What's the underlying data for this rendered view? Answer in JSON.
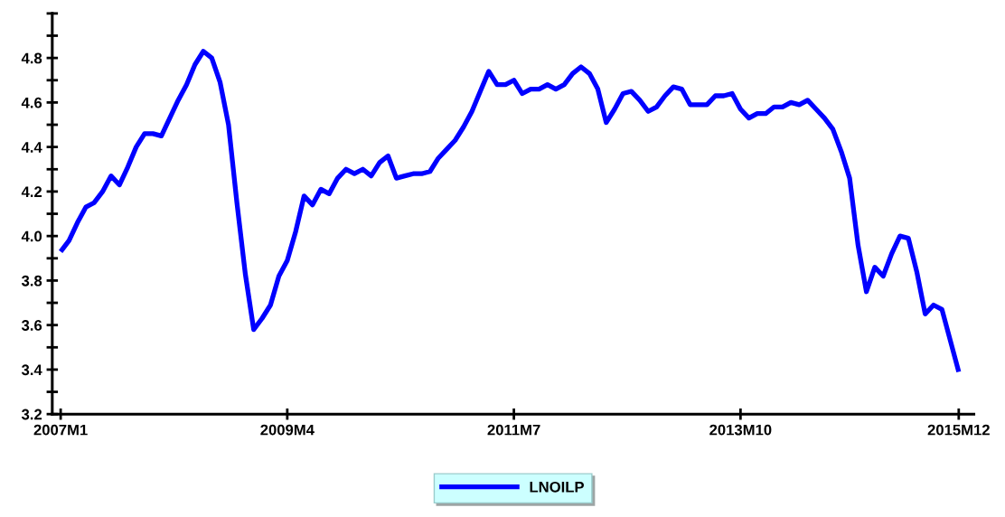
{
  "chart_data": {
    "type": "line",
    "categories": [
      "2007M1",
      null,
      null,
      null,
      null,
      null,
      null,
      null,
      null,
      null,
      null,
      null,
      null,
      null,
      null,
      null,
      null,
      null,
      null,
      null,
      null,
      null,
      null,
      null,
      null,
      null,
      null,
      "2009M4",
      null,
      null,
      null,
      null,
      null,
      null,
      null,
      null,
      null,
      null,
      null,
      null,
      null,
      null,
      null,
      null,
      null,
      null,
      null,
      null,
      null,
      null,
      null,
      null,
      null,
      null,
      "2011M7",
      null,
      null,
      null,
      null,
      null,
      null,
      null,
      null,
      null,
      null,
      null,
      null,
      null,
      null,
      null,
      null,
      null,
      null,
      null,
      null,
      null,
      null,
      null,
      null,
      null,
      null,
      "2013M10",
      null,
      null,
      null,
      null,
      null,
      null,
      null,
      null,
      null,
      null,
      null,
      null,
      null,
      null,
      null,
      null,
      null,
      null,
      null,
      null,
      null,
      null,
      null,
      null,
      null,
      "2015M12"
    ],
    "series": [
      {
        "name": "LNOILP",
        "color": "#0000ff",
        "values": [
          3.93,
          3.98,
          4.06,
          4.13,
          4.15,
          4.2,
          4.27,
          4.23,
          4.31,
          4.4,
          4.46,
          4.46,
          4.45,
          4.53,
          4.61,
          4.68,
          4.77,
          4.83,
          4.8,
          4.69,
          4.5,
          4.15,
          3.83,
          3.58,
          3.63,
          3.69,
          3.82,
          3.89,
          4.02,
          4.18,
          4.14,
          4.21,
          4.19,
          4.26,
          4.3,
          4.28,
          4.3,
          4.27,
          4.33,
          4.36,
          4.26,
          4.27,
          4.28,
          4.28,
          4.29,
          4.35,
          4.39,
          4.43,
          4.49,
          4.56,
          4.65,
          4.74,
          4.68,
          4.68,
          4.7,
          4.64,
          4.66,
          4.66,
          4.68,
          4.66,
          4.68,
          4.73,
          4.76,
          4.73,
          4.66,
          4.51,
          4.57,
          4.64,
          4.65,
          4.61,
          4.56,
          4.58,
          4.63,
          4.67,
          4.66,
          4.59,
          4.59,
          4.59,
          4.63,
          4.63,
          4.64,
          4.57,
          4.53,
          4.55,
          4.55,
          4.58,
          4.58,
          4.6,
          4.59,
          4.61,
          4.57,
          4.53,
          4.48,
          4.38,
          4.26,
          3.96,
          3.75,
          3.86,
          3.82,
          3.92,
          4.0,
          3.99,
          3.84,
          3.65,
          3.69,
          3.67,
          3.53,
          3.39
        ]
      }
    ],
    "ylim": [
      3.2,
      5.0
    ],
    "yticks": [
      3.2,
      {
        "value": 3.3,
        "label": null
      },
      3.4,
      {
        "value": 3.5,
        "label": null
      },
      3.6,
      {
        "value": 3.7,
        "label": null
      },
      3.8,
      {
        "value": 3.9,
        "label": null
      },
      {
        "value": 4.0,
        "label": "4.0"
      },
      {
        "value": 4.1,
        "label": null
      },
      4.2,
      {
        "value": 4.3,
        "label": null
      },
      4.4,
      {
        "value": 4.5,
        "label": null
      },
      4.6,
      {
        "value": 4.7,
        "label": null
      },
      4.8,
      {
        "value": 4.9,
        "label": null
      },
      {
        "value": 5.0,
        "label": null
      }
    ],
    "grid": false,
    "legend": "bottom",
    "marker": "none",
    "line_style": "solid"
  }
}
